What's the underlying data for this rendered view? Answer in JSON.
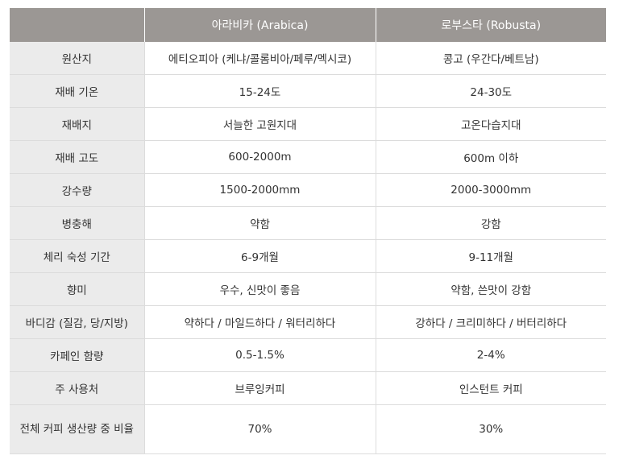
{
  "table": {
    "headers": [
      "",
      "아라비카 (Arabica)",
      "로부스타 (Robusta)"
    ],
    "rows": [
      {
        "label": "원산지",
        "arabica": "에티오피아 (케냐/콜롬비아/페루/멕시코)",
        "robusta": "콩고 (우간다/베트남)"
      },
      {
        "label": "재배 기온",
        "arabica": "15-24도",
        "robusta": "24-30도"
      },
      {
        "label": "재배지",
        "arabica": "서늘한 고원지대",
        "robusta": "고온다습지대"
      },
      {
        "label": "재배 고도",
        "arabica": "600-2000m",
        "robusta": "600m 이하"
      },
      {
        "label": "강수량",
        "arabica": "1500-2000mm",
        "robusta": "2000-3000mm"
      },
      {
        "label": "병충해",
        "arabica": "약함",
        "robusta": "강함"
      },
      {
        "label": "체리 숙성 기간",
        "arabica": "6-9개월",
        "robusta": "9-11개월"
      },
      {
        "label": "향미",
        "arabica": "우수, 신맛이 좋음",
        "robusta": "약함, 쓴맛이 강함"
      },
      {
        "label": "바디감 (질감, 당/지방)",
        "arabica": "약하다 / 마일드하다 / 워터리하다",
        "robusta": "강하다 / 크리미하다 / 버터리하다"
      },
      {
        "label": "카페인 함량",
        "arabica": "0.5-1.5%",
        "robusta": "2-4%"
      },
      {
        "label": "주 사용처",
        "arabica": "브루잉커피",
        "robusta": "인스턴트 커피"
      },
      {
        "label": "전체 커피 생산량 중 비율",
        "arabica": "70%",
        "robusta": "30%"
      }
    ]
  },
  "colors": {
    "header_bg": "#9b9794",
    "label_bg": "#ebebeb",
    "border": "#dcdcdc"
  }
}
